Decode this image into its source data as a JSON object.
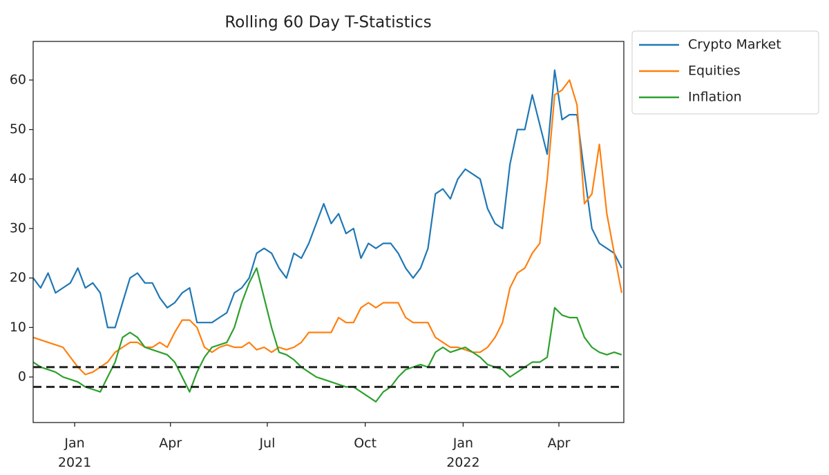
{
  "chart_data": {
    "type": "line",
    "title": "Rolling 60 Day T-Statistics",
    "x": [
      "2020-11-23",
      "2020-11-30",
      "2020-12-07",
      "2020-12-14",
      "2020-12-21",
      "2020-12-28",
      "2021-01-04",
      "2021-01-11",
      "2021-01-18",
      "2021-01-25",
      "2021-02-01",
      "2021-02-08",
      "2021-02-15",
      "2021-02-22",
      "2021-03-01",
      "2021-03-08",
      "2021-03-15",
      "2021-03-22",
      "2021-03-29",
      "2021-04-05",
      "2021-04-12",
      "2021-04-19",
      "2021-04-26",
      "2021-05-03",
      "2021-05-10",
      "2021-05-17",
      "2021-05-24",
      "2021-05-31",
      "2021-06-07",
      "2021-06-14",
      "2021-06-21",
      "2021-06-28",
      "2021-07-05",
      "2021-07-12",
      "2021-07-19",
      "2021-07-26",
      "2021-08-02",
      "2021-08-09",
      "2021-08-16",
      "2021-08-23",
      "2021-08-30",
      "2021-09-06",
      "2021-09-13",
      "2021-09-20",
      "2021-09-27",
      "2021-10-04",
      "2021-10-11",
      "2021-10-18",
      "2021-10-25",
      "2021-11-01",
      "2021-11-08",
      "2021-11-15",
      "2021-11-22",
      "2021-11-29",
      "2021-12-06",
      "2021-12-13",
      "2021-12-20",
      "2021-12-27",
      "2022-01-03",
      "2022-01-10",
      "2022-01-17",
      "2022-01-24",
      "2022-01-31",
      "2022-02-07",
      "2022-02-14",
      "2022-02-21",
      "2022-02-28",
      "2022-03-07",
      "2022-03-14",
      "2022-03-21",
      "2022-03-28",
      "2022-04-04",
      "2022-04-11",
      "2022-04-18",
      "2022-04-25",
      "2022-05-02",
      "2022-05-09",
      "2022-05-16",
      "2022-05-23",
      "2022-05-30"
    ],
    "series": [
      {
        "name": "Crypto Market",
        "color": "#1f77b4",
        "values": [
          20,
          18,
          21,
          17,
          18,
          19,
          22,
          18,
          19,
          17,
          10,
          10,
          15,
          20,
          21,
          19,
          19,
          16,
          14,
          15,
          17,
          18,
          11,
          11,
          11,
          12,
          13,
          17,
          18,
          20,
          25,
          26,
          25,
          22,
          20,
          25,
          24,
          27,
          31,
          35,
          31,
          33,
          29,
          30,
          24,
          27,
          26,
          27,
          27,
          25,
          22,
          20,
          22,
          26,
          37,
          38,
          36,
          40,
          42,
          41,
          40,
          34,
          31,
          30,
          43,
          50,
          50,
          57,
          51,
          45,
          62,
          52,
          53,
          53,
          41,
          30,
          27,
          26,
          25,
          22
        ]
      },
      {
        "name": "Equities",
        "color": "#ff7f0e",
        "values": [
          8,
          7.5,
          7,
          6.5,
          6,
          4,
          2,
          0.5,
          1,
          2,
          3,
          5,
          6,
          7,
          7,
          6,
          6,
          7,
          6,
          9,
          11.5,
          11.5,
          10,
          6,
          5,
          6,
          6.5,
          6,
          6,
          7,
          5.5,
          6,
          5,
          6,
          5.5,
          6,
          7,
          9,
          9,
          9,
          9,
          12,
          11,
          11,
          14,
          15,
          14,
          15,
          15,
          15,
          12,
          11,
          11,
          11,
          8,
          7,
          6,
          6,
          5.5,
          5,
          5,
          6,
          8,
          11,
          18,
          21,
          22,
          25,
          27,
          40,
          57,
          58,
          60,
          55,
          35,
          37,
          47,
          33,
          25,
          17
        ]
      },
      {
        "name": "Inflation",
        "color": "#2ca02c",
        "values": [
          3,
          2,
          1.5,
          1,
          0,
          -0.5,
          -1,
          -2,
          -2.5,
          -3,
          0,
          3,
          8,
          9,
          8,
          6,
          5.5,
          5,
          4.5,
          3,
          0,
          -3,
          1,
          4,
          6,
          6.5,
          7,
          10,
          15,
          19,
          22,
          16,
          10,
          5,
          4.5,
          3.5,
          2,
          1,
          0,
          -0.5,
          -1,
          -1.5,
          -2,
          -2,
          -3,
          -4,
          -5,
          -3,
          -2,
          0,
          1.5,
          2,
          2.5,
          2,
          5,
          6,
          5,
          5.5,
          6,
          5,
          4,
          2.5,
          2,
          1.5,
          0,
          1,
          2,
          3,
          3,
          4,
          14,
          12.5,
          12,
          12,
          8,
          6,
          5,
          4.5,
          5,
          4.5
        ]
      }
    ],
    "hlines": [
      2,
      -2
    ],
    "hline_color": "#222222",
    "xlim": [
      "2020-11-23",
      "2022-06-01"
    ],
    "xticks": [
      {
        "value": "2021-01-01",
        "label": "Jan\n2021"
      },
      {
        "value": "2021-04-01",
        "label": "Apr"
      },
      {
        "value": "2021-07-01",
        "label": "Jul"
      },
      {
        "value": "2021-10-01",
        "label": "Oct"
      },
      {
        "value": "2022-01-01",
        "label": "Jan\n2022"
      },
      {
        "value": "2022-04-01",
        "label": "Apr"
      }
    ],
    "ylim": [
      -9.2,
      67.8
    ],
    "yticks": [
      0,
      10,
      20,
      30,
      40,
      50,
      60
    ],
    "legend": "outside",
    "grid": false
  }
}
